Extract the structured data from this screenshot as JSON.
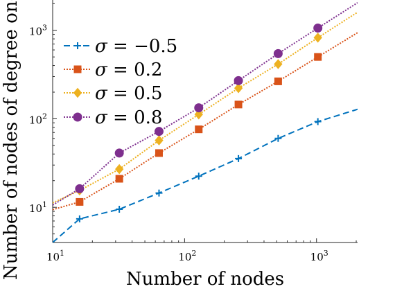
{
  "chart_data": {
    "type": "line",
    "title": "",
    "xlabel": "Number of nodes",
    "ylabel": "Number of nodes of degree one",
    "xscale": "log",
    "yscale": "log",
    "xlim": [
      10,
      2048
    ],
    "ylim": [
      4,
      2200
    ],
    "grid": false,
    "legend_position": "top-left",
    "x_ticks": [
      {
        "value": 10,
        "base": "10",
        "exp": "1"
      },
      {
        "value": 100,
        "base": "10",
        "exp": "2"
      },
      {
        "value": 1000,
        "base": "10",
        "exp": "3"
      }
    ],
    "y_ticks": [
      {
        "value": 10,
        "base": "10",
        "exp": "1"
      },
      {
        "value": 100,
        "base": "10",
        "exp": "2"
      },
      {
        "value": 1000,
        "base": "10",
        "exp": "3"
      }
    ],
    "series": [
      {
        "name": "σ = −0.5",
        "legend_sigma": "σ",
        "legend_eq": " = −0.5",
        "color": "#0072BD",
        "dash": "9,5",
        "marker": "plus",
        "x": [
          10,
          16,
          32,
          64,
          128,
          256,
          512,
          1024,
          2048
        ],
        "y": [
          4,
          7.4,
          9.5,
          14.5,
          22.5,
          35.5,
          60,
          93,
          128
        ]
      },
      {
        "name": "σ = 0.2",
        "legend_sigma": "σ",
        "legend_eq": " = 0.2",
        "color": "#D95319",
        "dash": "2,2",
        "marker": "square",
        "x": [
          10,
          16,
          32,
          64,
          128,
          256,
          512,
          1024,
          2048
        ],
        "y": [
          9.4,
          11.5,
          21,
          41,
          76,
          145,
          265,
          500,
          940
        ]
      },
      {
        "name": "σ = 0.5",
        "legend_sigma": "σ",
        "legend_eq": " = 0.5",
        "color": "#EDB120",
        "dash": "2,2",
        "marker": "diamond",
        "x": [
          10,
          16,
          32,
          64,
          128,
          256,
          512,
          1024,
          2048
        ],
        "y": [
          11.2,
          15.5,
          27,
          57,
          112,
          222,
          415,
          825,
          1600
        ]
      },
      {
        "name": "σ = 0.8",
        "legend_sigma": "σ",
        "legend_eq": " = 0.8",
        "color": "#7E2F8E",
        "dash": "2,2",
        "marker": "circle",
        "x": [
          10,
          16,
          32,
          64,
          128,
          256,
          512,
          1024,
          2048
        ],
        "y": [
          10.6,
          16.2,
          41,
          72,
          133,
          270,
          545,
          1060,
          2050
        ]
      }
    ]
  }
}
